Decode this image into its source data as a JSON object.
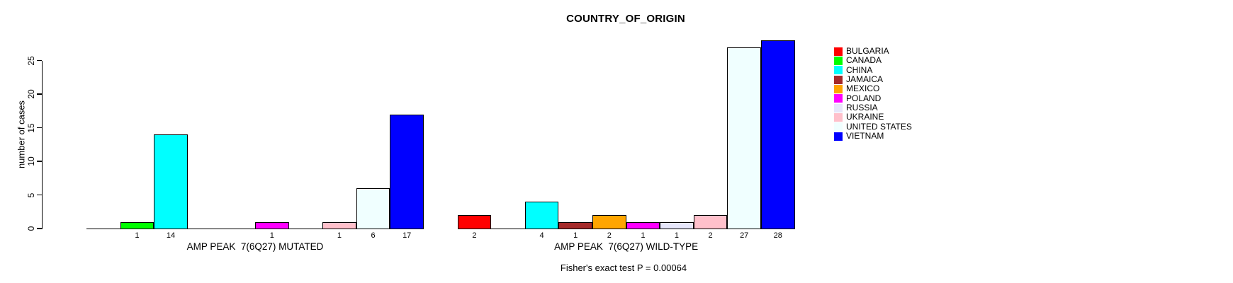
{
  "title": "COUNTRY_OF_ORIGIN",
  "footer": "Fisher's exact test P = 0.00064",
  "y_axis": {
    "label": "number of cases",
    "ticks": [
      0,
      5,
      10,
      15,
      20,
      25
    ]
  },
  "legend": {
    "position": "right",
    "items": [
      {
        "label": "BULGARIA",
        "color": "#FF0000"
      },
      {
        "label": "CANADA",
        "color": "#00FF00"
      },
      {
        "label": "CHINA",
        "color": "#00FFFF"
      },
      {
        "label": "JAMAICA",
        "color": "#A52A2A"
      },
      {
        "label": "MEXICO",
        "color": "#FFA500"
      },
      {
        "label": "POLAND",
        "color": "#FF00FF"
      },
      {
        "label": "RUSSIA",
        "color": "#E6E6FA"
      },
      {
        "label": "UKRAINE",
        "color": "#FFC0CB"
      },
      {
        "label": "UNITED STATES",
        "color": "#F0FFFF"
      },
      {
        "label": "VIETNAM",
        "color": "#0000FF"
      }
    ]
  },
  "chart_data": {
    "type": "bar",
    "title": "COUNTRY_OF_ORIGIN",
    "xlabel": "",
    "ylabel": "number of cases",
    "ylim": [
      0,
      28
    ],
    "yticks": [
      0,
      5,
      10,
      15,
      20,
      25
    ],
    "grid": false,
    "legend_position": "right",
    "bar_value_labels_shown": true,
    "categories": [
      "BULGARIA",
      "CANADA",
      "CHINA",
      "JAMAICA",
      "MEXICO",
      "POLAND",
      "RUSSIA",
      "UKRAINE",
      "UNITED STATES",
      "VIETNAM"
    ],
    "colors": [
      "#FF0000",
      "#00FF00",
      "#00FFFF",
      "#A52A2A",
      "#FFA500",
      "#FF00FF",
      "#E6E6FA",
      "#FFC0CB",
      "#F0FFFF",
      "#0000FF"
    ],
    "groups": [
      {
        "label": "AMP PEAK  7(6Q27) MUTATED",
        "values": [
          0,
          1,
          14,
          0,
          0,
          1,
          0,
          1,
          6,
          17
        ]
      },
      {
        "label": "AMP PEAK  7(6Q27) WILD-TYPE",
        "values": [
          2,
          0,
          4,
          1,
          2,
          1,
          1,
          2,
          27,
          28
        ]
      }
    ],
    "annotation": "Fisher's exact test P = 0.00064"
  }
}
